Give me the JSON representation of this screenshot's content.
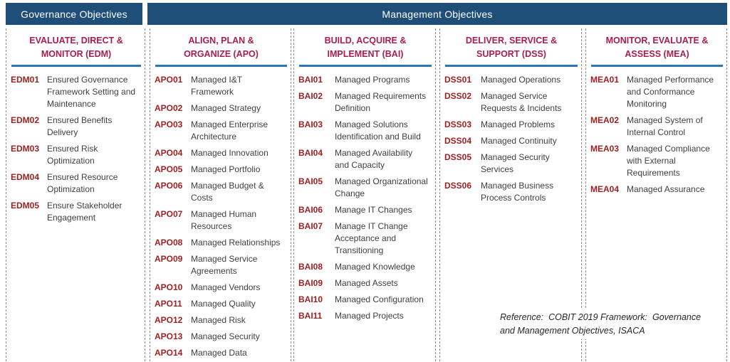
{
  "banners": {
    "governance": "Governance Objectives",
    "management": "Management Objectives"
  },
  "colors": {
    "banner_navy": "#1F4E79",
    "header_crimson": "#A91E4C",
    "code_red": "#9E1F1F",
    "body_gray": "#3F3F3F",
    "rule_blue": "#2E75B6",
    "border_gray": "#8C8C8C"
  },
  "reference": {
    "text": "Reference:  COBIT 2019 Framework:  Governance\nand Management Objectives, ISACA"
  },
  "columns": [
    {
      "id": "edm",
      "title_line1": "EVALUATE, DIRECT &",
      "title_line2": "MONITOR (EDM)",
      "items": [
        {
          "code": "EDM01",
          "label": "Ensured Governance\nFramework Setting and\nMaintenance"
        },
        {
          "code": "EDM02",
          "label": "Ensured Benefits\nDelivery"
        },
        {
          "code": "EDM03",
          "label": "Ensured Risk\nOptimization"
        },
        {
          "code": "EDM04",
          "label": "Ensured Resource\nOptimization"
        },
        {
          "code": "EDM05",
          "label": "Ensure Stakeholder\nEngagement"
        }
      ]
    },
    {
      "id": "apo",
      "title_line1": "ALIGN, PLAN &",
      "title_line2": "ORGANIZE (APO)",
      "items": [
        {
          "code": "APO01",
          "label": "Managed I&T\nFramework"
        },
        {
          "code": "APO02",
          "label": "Managed Strategy"
        },
        {
          "code": "APO03",
          "label": "Managed Enterprise\nArchitecture"
        },
        {
          "code": "APO04",
          "label": "Managed Innovation"
        },
        {
          "code": "APO05",
          "label": "Managed Portfolio"
        },
        {
          "code": "APO06",
          "label": "Managed Budget &\nCosts"
        },
        {
          "code": "APO07",
          "label": "Managed Human\nResources"
        },
        {
          "code": "APO08",
          "label": "Managed Relationships"
        },
        {
          "code": "APO09",
          "label": "Managed Service\nAgreements"
        },
        {
          "code": "APO10",
          "label": "Managed Vendors"
        },
        {
          "code": "APO11",
          "label": "Managed Quality"
        },
        {
          "code": "APO12",
          "label": "Managed Risk"
        },
        {
          "code": "APO13",
          "label": "Managed Security"
        },
        {
          "code": "APO14",
          "label": "Managed Data"
        }
      ]
    },
    {
      "id": "bai",
      "title_line1": "BUILD, ACQUIRE &",
      "title_line2": "IMPLEMENT (BAI)",
      "items": [
        {
          "code": "BAI01",
          "label": "Managed Programs"
        },
        {
          "code": "BAI02",
          "label": "Managed Requirements\nDefinition"
        },
        {
          "code": "BAI03",
          "label": "Managed Solutions\nIdentification and Build"
        },
        {
          "code": "BAI04",
          "label": "Managed Availability\nand Capacity"
        },
        {
          "code": "BAI05",
          "label": "Managed Organizational\nChange"
        },
        {
          "code": "BAI06",
          "label": "Manage IT Changes"
        },
        {
          "code": "BAI07",
          "label": "Manage IT Change\nAcceptance and\nTransitioning"
        },
        {
          "code": "BAI08",
          "label": "Managed Knowledge"
        },
        {
          "code": "BAI09",
          "label": "Managed Assets"
        },
        {
          "code": "BAI10",
          "label": "Managed Configuration"
        },
        {
          "code": "BAI11",
          "label": "Managed Projects"
        }
      ]
    },
    {
      "id": "dss",
      "title_line1": "DELIVER, SERVICE &",
      "title_line2": "SUPPORT (DSS)",
      "items": [
        {
          "code": "DSS01",
          "label": "Managed Operations"
        },
        {
          "code": "DSS02",
          "label": "Managed Service\nRequests & Incidents"
        },
        {
          "code": "DSS03",
          "label": "Managed Problems"
        },
        {
          "code": "DSS04",
          "label": "Managed Continuity"
        },
        {
          "code": "DSS05",
          "label": "Managed Security\nServices"
        },
        {
          "code": "DSS06",
          "label": "Managed Business\nProcess Controls"
        }
      ]
    },
    {
      "id": "mea",
      "title_line1": "MONITOR, EVALUATE &",
      "title_line2": "ASSESS (MEA)",
      "items": [
        {
          "code": "MEA01",
          "label": "Managed Performance\nand Conformance\nMonitoring"
        },
        {
          "code": "MEA02",
          "label": "Managed System of\nInternal Control"
        },
        {
          "code": "MEA03",
          "label": "Managed Compliance\nwith External\nRequirements"
        },
        {
          "code": "MEA04",
          "label": "Managed Assurance"
        }
      ]
    }
  ]
}
